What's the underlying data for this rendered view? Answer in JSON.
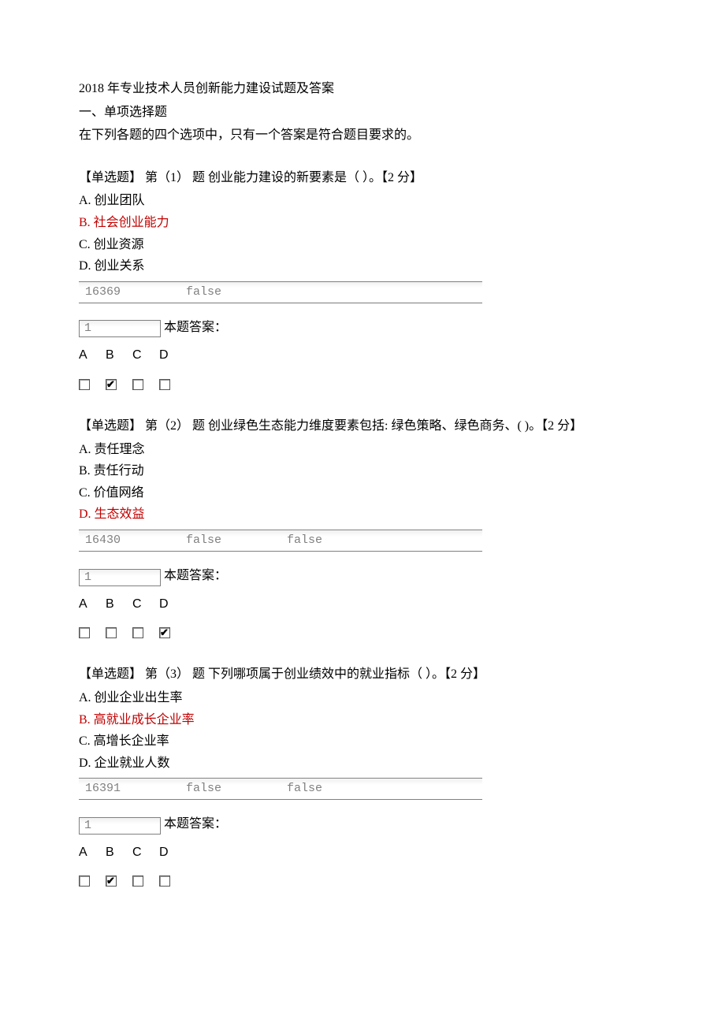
{
  "header": {
    "title": "2018 年专业技术人员创新能力建设试题及答案",
    "section_title": "一、单项选择题",
    "section_desc": "在下列各题的四个选项中，只有一个答案是符合题目要求的。"
  },
  "answer_label": "本题答案：",
  "letters": [
    "A",
    "B",
    "C",
    "D"
  ],
  "questions": [
    {
      "prompt": "【单选题】 第（1）  题  创业能力建设的新要素是（ ）。【2 分】",
      "options": [
        {
          "label": "A.  创业团队",
          "is_answer": false
        },
        {
          "label": "B.  社会创业能力",
          "is_answer": true
        },
        {
          "label": "C.  创业资源",
          "is_answer": false
        },
        {
          "label": "D.  创业关系",
          "is_answer": false
        }
      ],
      "table": [
        "16369",
        "false",
        "",
        ""
      ],
      "num": "1",
      "checked_index": 1
    },
    {
      "prompt": "【单选题】 第（2）  题  创业绿色生态能力维度要素包括: 绿色策略、绿色商务、(  )。【2 分】",
      "options": [
        {
          "label": "A.  责任理念",
          "is_answer": false
        },
        {
          "label": "B.  责任行动",
          "is_answer": false
        },
        {
          "label": "C.  价值网络",
          "is_answer": false
        },
        {
          "label": "D.  生态效益",
          "is_answer": true
        }
      ],
      "table": [
        "16430",
        "false",
        "false",
        ""
      ],
      "num": "1",
      "checked_index": 3
    },
    {
      "prompt": "【单选题】 第（3）  题  下列哪项属于创业绩效中的就业指标（ ）。【2 分】",
      "options": [
        {
          "label": "A.  创业企业出生率",
          "is_answer": false
        },
        {
          "label": "B.  高就业成长企业率",
          "is_answer": true
        },
        {
          "label": "C.  高增长企业率",
          "is_answer": false
        },
        {
          "label": "D.  企业就业人数",
          "is_answer": false
        }
      ],
      "table": [
        "16391",
        "false",
        "false",
        ""
      ],
      "num": "1",
      "checked_index": 1
    }
  ]
}
